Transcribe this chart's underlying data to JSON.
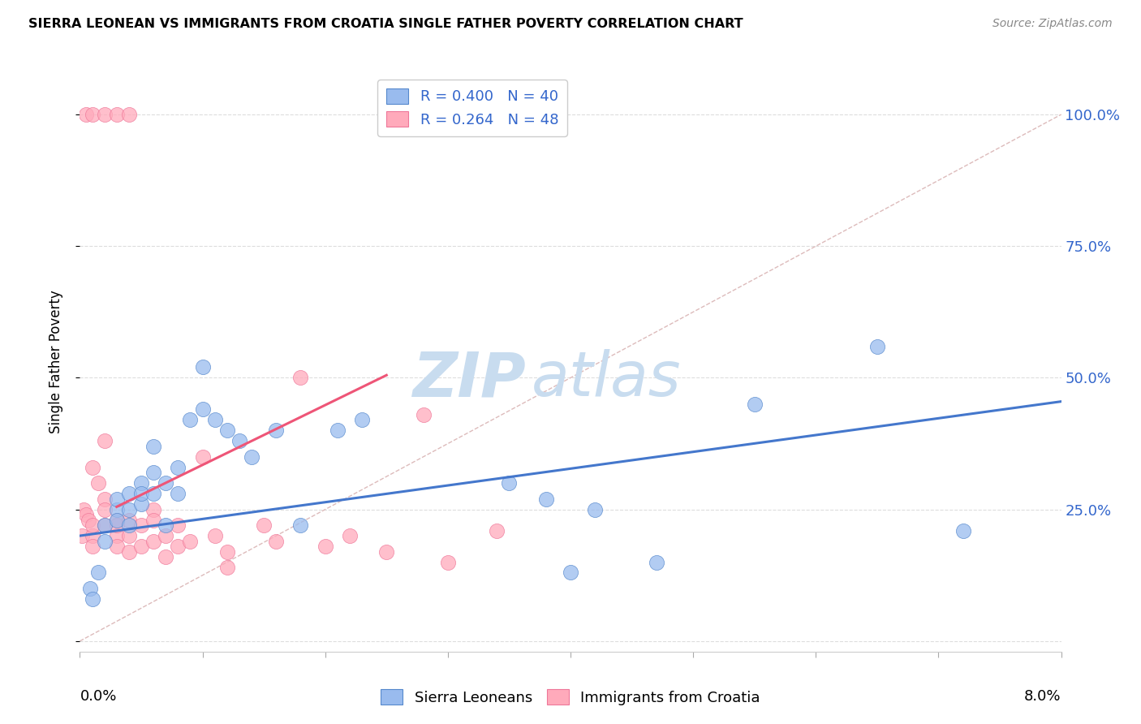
{
  "title": "SIERRA LEONEAN VS IMMIGRANTS FROM CROATIA SINGLE FATHER POVERTY CORRELATION CHART",
  "source": "Source: ZipAtlas.com",
  "ylabel": "Single Father Poverty",
  "xlim": [
    0.0,
    0.08
  ],
  "ylim": [
    -0.02,
    1.08
  ],
  "plot_ylim": [
    0.0,
    1.08
  ],
  "yticks": [
    0.0,
    0.25,
    0.5,
    0.75,
    1.0
  ],
  "ytick_labels": [
    "",
    "25.0%",
    "50.0%",
    "75.0%",
    "100.0%"
  ],
  "legend_blue_r": "0.400",
  "legend_blue_n": "40",
  "legend_pink_r": "0.264",
  "legend_pink_n": "48",
  "legend_blue_label": "Sierra Leoneans",
  "legend_pink_label": "Immigrants from Croatia",
  "blue_fill": "#99BBEE",
  "pink_fill": "#FFAABB",
  "blue_edge": "#5588CC",
  "pink_edge": "#EE7799",
  "blue_line_color": "#4477CC",
  "pink_line_color": "#EE5577",
  "ref_line_color": "#DDBBBB",
  "grid_color": "#DDDDDD",
  "blue_scatter_x": [
    0.0008,
    0.001,
    0.0015,
    0.002,
    0.002,
    0.003,
    0.003,
    0.003,
    0.004,
    0.004,
    0.004,
    0.005,
    0.005,
    0.005,
    0.006,
    0.006,
    0.006,
    0.007,
    0.007,
    0.008,
    0.008,
    0.009,
    0.01,
    0.01,
    0.011,
    0.012,
    0.013,
    0.014,
    0.016,
    0.018,
    0.021,
    0.023,
    0.035,
    0.038,
    0.04,
    0.042,
    0.047,
    0.055,
    0.065,
    0.072
  ],
  "blue_scatter_y": [
    0.1,
    0.08,
    0.13,
    0.19,
    0.22,
    0.25,
    0.23,
    0.27,
    0.28,
    0.25,
    0.22,
    0.3,
    0.26,
    0.28,
    0.32,
    0.28,
    0.37,
    0.3,
    0.22,
    0.33,
    0.28,
    0.42,
    0.44,
    0.52,
    0.42,
    0.4,
    0.38,
    0.35,
    0.4,
    0.22,
    0.4,
    0.42,
    0.3,
    0.27,
    0.13,
    0.25,
    0.15,
    0.45,
    0.56,
    0.21
  ],
  "pink_scatter_x": [
    0.0002,
    0.0003,
    0.0005,
    0.0007,
    0.001,
    0.001,
    0.001,
    0.001,
    0.0015,
    0.002,
    0.002,
    0.002,
    0.002,
    0.003,
    0.003,
    0.003,
    0.003,
    0.004,
    0.004,
    0.004,
    0.005,
    0.005,
    0.006,
    0.006,
    0.006,
    0.007,
    0.007,
    0.008,
    0.008,
    0.009,
    0.01,
    0.011,
    0.012,
    0.012,
    0.015,
    0.016,
    0.0005,
    0.001,
    0.002,
    0.003,
    0.004,
    0.018,
    0.02,
    0.022,
    0.025,
    0.028,
    0.03,
    0.034
  ],
  "pink_scatter_y": [
    0.2,
    0.25,
    0.24,
    0.23,
    0.2,
    0.22,
    0.18,
    0.33,
    0.3,
    0.27,
    0.25,
    0.22,
    0.38,
    0.23,
    0.2,
    0.22,
    0.18,
    0.23,
    0.2,
    0.17,
    0.22,
    0.18,
    0.25,
    0.23,
    0.19,
    0.2,
    0.16,
    0.22,
    0.18,
    0.19,
    0.35,
    0.2,
    0.17,
    0.14,
    0.22,
    0.19,
    1.0,
    1.0,
    1.0,
    1.0,
    1.0,
    0.5,
    0.18,
    0.2,
    0.17,
    0.43,
    0.15,
    0.21
  ],
  "blue_line_x0": 0.0,
  "blue_line_x1": 0.08,
  "blue_line_y0": 0.2,
  "blue_line_y1": 0.455,
  "pink_line_x0": 0.003,
  "pink_line_x1": 0.025,
  "pink_line_y0": 0.255,
  "pink_line_y1": 0.505
}
